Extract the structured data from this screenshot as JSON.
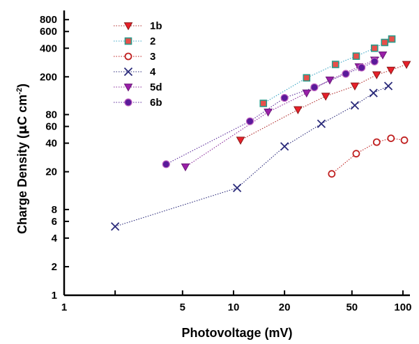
{
  "chart_data": {
    "type": "scatter",
    "xlabel": "Photovoltage (mV)",
    "ylabel_main": "Charge Density (",
    "ylabel_mu": "μ",
    "ylabel_unit": "C cm",
    "ylabel_exp": "-2",
    "ylabel_close": ")",
    "xscale": "log",
    "yscale": "log",
    "xlim": [
      1,
      110
    ],
    "ylim": [
      1,
      1000
    ],
    "x_ticks": [
      {
        "value": 1,
        "label": "1"
      },
      {
        "value": 2,
        "label": ""
      },
      {
        "value": 5,
        "label": "5"
      },
      {
        "value": 10,
        "label": "10"
      },
      {
        "value": 20,
        "label": "20"
      },
      {
        "value": 50,
        "label": "50"
      },
      {
        "value": 100,
        "label": "100"
      }
    ],
    "y_ticks": [
      {
        "value": 1,
        "label": "1"
      },
      {
        "value": 2,
        "label": "2"
      },
      {
        "value": 4,
        "label": "4"
      },
      {
        "value": 6,
        "label": "6"
      },
      {
        "value": 8,
        "label": "8"
      },
      {
        "value": 20,
        "label": "20"
      },
      {
        "value": 40,
        "label": "40"
      },
      {
        "value": 60,
        "label": "60"
      },
      {
        "value": 80,
        "label": "80"
      },
      {
        "value": 200,
        "label": "200"
      },
      {
        "value": 400,
        "label": "400"
      },
      {
        "value": 600,
        "label": "600"
      },
      {
        "value": 800,
        "label": "800"
      }
    ],
    "grid": false,
    "legend_position": "top-left",
    "series": [
      {
        "name": "1b",
        "marker": "triangle-down",
        "fill": "#e8202a",
        "stroke": "#8a1a1a",
        "line_color": "#b02a2a",
        "points": [
          [
            11,
            43
          ],
          [
            24,
            90
          ],
          [
            35,
            125
          ],
          [
            52,
            160
          ],
          [
            70,
            210
          ],
          [
            85,
            235
          ],
          [
            105,
            270
          ]
        ]
      },
      {
        "name": "2",
        "marker": "square",
        "fill": "#e8504a",
        "stroke": "#2a9a8a",
        "line_color": "#3aa5c5",
        "points": [
          [
            15,
            105
          ],
          [
            27,
            195
          ],
          [
            40,
            270
          ],
          [
            53,
            330
          ],
          [
            68,
            400
          ],
          [
            78,
            460
          ],
          [
            86,
            500
          ]
        ]
      },
      {
        "name": "3",
        "marker": "circle-open",
        "fill": "#ffffff",
        "stroke": "#c02020",
        "line_color": "#c02020",
        "points": [
          [
            38,
            19
          ],
          [
            53,
            31
          ],
          [
            70,
            41
          ],
          [
            85,
            45
          ],
          [
            102,
            43
          ]
        ]
      },
      {
        "name": "4",
        "marker": "x",
        "fill": "none",
        "stroke": "#2a2a7a",
        "line_color": "#2a2a7a",
        "points": [
          [
            2,
            5.3
          ],
          [
            10.5,
            13.5
          ],
          [
            20,
            37
          ],
          [
            33,
            64
          ],
          [
            52,
            100
          ],
          [
            67,
            135
          ],
          [
            82,
            160
          ]
        ]
      },
      {
        "name": "5d",
        "marker": "triangle-down",
        "fill": "#9a1fa8",
        "stroke": "#6a1a78",
        "line_color": "#8a2a9a",
        "points": [
          [
            5.2,
            22.5
          ],
          [
            16,
            85
          ],
          [
            27,
            135
          ],
          [
            37,
            185
          ],
          [
            55,
            255
          ],
          [
            68,
            300
          ],
          [
            76,
            340
          ]
        ]
      },
      {
        "name": "6b",
        "marker": "circle",
        "fill": "#5a1a9a",
        "stroke": "#c060c0",
        "line_color": "#5a2a9a",
        "points": [
          [
            4,
            24
          ],
          [
            12.5,
            68
          ],
          [
            20,
            120
          ],
          [
            30,
            155
          ],
          [
            46,
            215
          ],
          [
            57,
            250
          ],
          [
            68,
            290
          ]
        ]
      }
    ]
  }
}
